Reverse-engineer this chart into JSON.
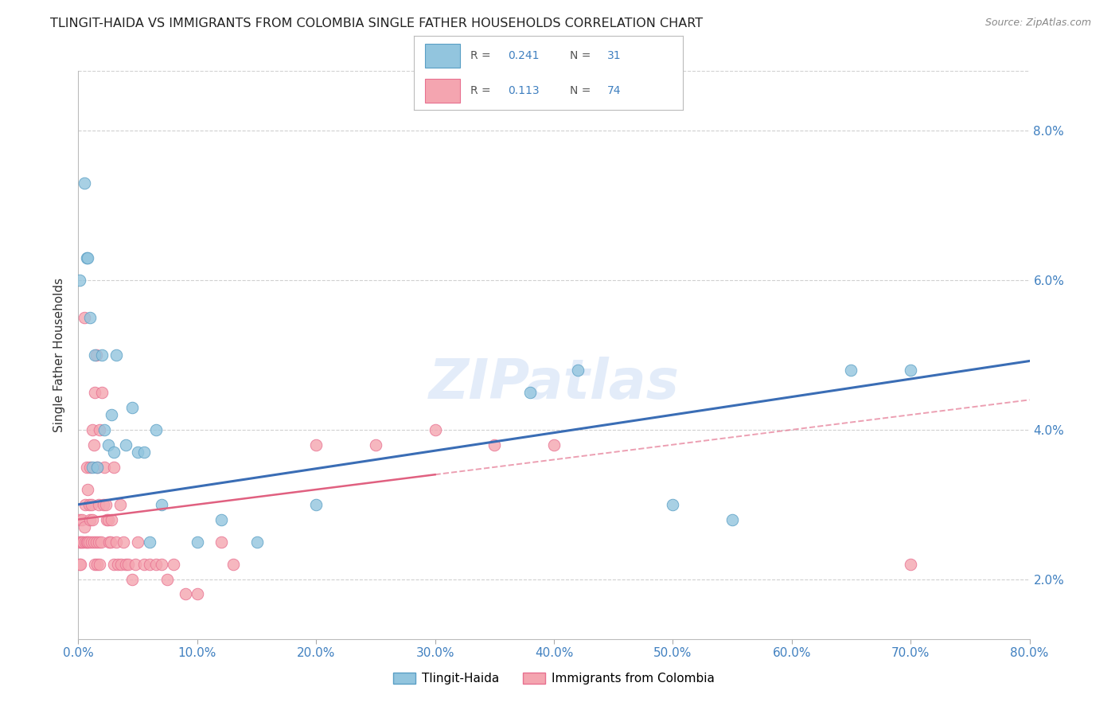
{
  "title": "TLINGIT-HAIDA VS IMMIGRANTS FROM COLOMBIA SINGLE FATHER HOUSEHOLDS CORRELATION CHART",
  "source": "Source: ZipAtlas.com",
  "ylabel": "Single Father Households",
  "xlabel_ticks": [
    "0.0%",
    "10.0%",
    "20.0%",
    "30.0%",
    "40.0%",
    "50.0%",
    "60.0%",
    "70.0%",
    "80.0%"
  ],
  "ytick_labels": [
    "2.0%",
    "4.0%",
    "6.0%",
    "8.0%"
  ],
  "xlim": [
    0.0,
    0.8
  ],
  "ylim": [
    0.012,
    0.088
  ],
  "tlingit_color": "#92c5de",
  "colombia_color": "#f4a5b0",
  "tlingit_edge": "#5a9fc5",
  "colombia_edge": "#e87090",
  "line_blue": "#3a6db5",
  "line_pink": "#e06080",
  "background_color": "#ffffff",
  "grid_color": "#d0d0d0",
  "tlingit_x": [
    0.001,
    0.005,
    0.007,
    0.008,
    0.01,
    0.012,
    0.014,
    0.016,
    0.02,
    0.022,
    0.025,
    0.028,
    0.03,
    0.032,
    0.04,
    0.045,
    0.05,
    0.055,
    0.06,
    0.065,
    0.07,
    0.1,
    0.12,
    0.15,
    0.2,
    0.38,
    0.42,
    0.5,
    0.55,
    0.65,
    0.7
  ],
  "tlingit_y": [
    0.06,
    0.073,
    0.063,
    0.063,
    0.055,
    0.035,
    0.05,
    0.035,
    0.05,
    0.04,
    0.038,
    0.042,
    0.037,
    0.05,
    0.038,
    0.043,
    0.037,
    0.037,
    0.025,
    0.04,
    0.03,
    0.025,
    0.028,
    0.025,
    0.03,
    0.045,
    0.048,
    0.03,
    0.028,
    0.048,
    0.048
  ],
  "colombia_x": [
    0.001,
    0.001,
    0.001,
    0.002,
    0.002,
    0.003,
    0.003,
    0.004,
    0.005,
    0.005,
    0.006,
    0.006,
    0.007,
    0.007,
    0.008,
    0.008,
    0.009,
    0.009,
    0.01,
    0.01,
    0.011,
    0.011,
    0.012,
    0.012,
    0.013,
    0.013,
    0.014,
    0.014,
    0.015,
    0.015,
    0.016,
    0.016,
    0.017,
    0.017,
    0.018,
    0.018,
    0.019,
    0.02,
    0.021,
    0.022,
    0.023,
    0.024,
    0.025,
    0.026,
    0.027,
    0.028,
    0.03,
    0.03,
    0.032,
    0.033,
    0.035,
    0.036,
    0.038,
    0.04,
    0.042,
    0.045,
    0.048,
    0.05,
    0.055,
    0.06,
    0.065,
    0.07,
    0.075,
    0.08,
    0.09,
    0.1,
    0.12,
    0.13,
    0.2,
    0.25,
    0.3,
    0.35,
    0.4,
    0.7
  ],
  "colombia_y": [
    0.028,
    0.025,
    0.022,
    0.025,
    0.022,
    0.028,
    0.025,
    0.025,
    0.055,
    0.027,
    0.03,
    0.025,
    0.035,
    0.025,
    0.032,
    0.025,
    0.03,
    0.025,
    0.035,
    0.028,
    0.03,
    0.025,
    0.04,
    0.028,
    0.038,
    0.025,
    0.045,
    0.022,
    0.05,
    0.025,
    0.035,
    0.022,
    0.03,
    0.025,
    0.04,
    0.022,
    0.025,
    0.045,
    0.03,
    0.035,
    0.03,
    0.028,
    0.028,
    0.025,
    0.025,
    0.028,
    0.035,
    0.022,
    0.025,
    0.022,
    0.03,
    0.022,
    0.025,
    0.022,
    0.022,
    0.02,
    0.022,
    0.025,
    0.022,
    0.022,
    0.022,
    0.022,
    0.02,
    0.022,
    0.018,
    0.018,
    0.025,
    0.022,
    0.038,
    0.038,
    0.04,
    0.038,
    0.038,
    0.022
  ]
}
